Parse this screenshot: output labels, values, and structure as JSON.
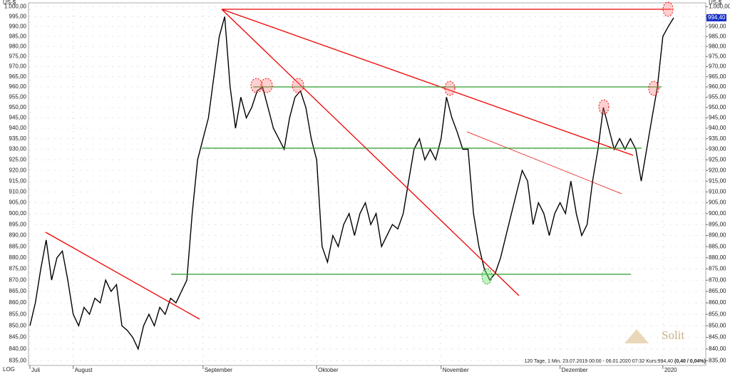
{
  "chart_data": {
    "type": "line",
    "log_scale": true,
    "grid": true,
    "color": "#000000",
    "axis_unit": "US-$",
    "scale_label": "LOG",
    "footer": "120 Tage, 1 Min. 23.07.2019 00:00 - 06.01.2020 07:32 Kurs:994,40",
    "footer_change": "(0,40 / 0,04%)",
    "logo": "Solit",
    "current_price": {
      "value": 994.4,
      "label": "994,40"
    },
    "ylim": [
      833,
      1002
    ],
    "yticks": [
      {
        "value": 835,
        "label": "835,00"
      },
      {
        "value": 840,
        "label": "840,00"
      },
      {
        "value": 845,
        "label": "845,00"
      },
      {
        "value": 850,
        "label": "850,00"
      },
      {
        "value": 855,
        "label": "855,00"
      },
      {
        "value": 860,
        "label": "860,00"
      },
      {
        "value": 865,
        "label": "865,00"
      },
      {
        "value": 870,
        "label": "870,00"
      },
      {
        "value": 875,
        "label": "875,00"
      },
      {
        "value": 880,
        "label": "880,00"
      },
      {
        "value": 885,
        "label": "885,00"
      },
      {
        "value": 890,
        "label": "890,00"
      },
      {
        "value": 895,
        "label": "895,00"
      },
      {
        "value": 900,
        "label": "900,00"
      },
      {
        "value": 905,
        "label": "905,00"
      },
      {
        "value": 910,
        "label": "910,00"
      },
      {
        "value": 915,
        "label": "915,00"
      },
      {
        "value": 920,
        "label": "920,00"
      },
      {
        "value": 925,
        "label": "925,00"
      },
      {
        "value": 930,
        "label": "930,00"
      },
      {
        "value": 935,
        "label": "935,00"
      },
      {
        "value": 940,
        "label": "940,00"
      },
      {
        "value": 945,
        "label": "945,00"
      },
      {
        "value": 950,
        "label": "950,00"
      },
      {
        "value": 955,
        "label": "955,00"
      },
      {
        "value": 960,
        "label": "960,00"
      },
      {
        "value": 965,
        "label": "965,00"
      },
      {
        "value": 970,
        "label": "970,00"
      },
      {
        "value": 975,
        "label": "975,00"
      },
      {
        "value": 980,
        "label": "980,00"
      },
      {
        "value": 985,
        "label": "985,00"
      },
      {
        "value": 990,
        "label": "990,00"
      },
      {
        "value": 995,
        "label": "995,00"
      },
      {
        "value": 1000,
        "label": "1.000,00"
      }
    ],
    "categories": [
      "Juli",
      null,
      null,
      null,
      null,
      null,
      null,
      null,
      "August",
      null,
      null,
      null,
      null,
      null,
      null,
      null,
      null,
      null,
      null,
      null,
      null,
      null,
      null,
      null,
      null,
      null,
      null,
      null,
      null,
      null,
      null,
      null,
      "September",
      null,
      null,
      null,
      null,
      null,
      null,
      null,
      null,
      null,
      null,
      null,
      null,
      null,
      null,
      null,
      null,
      null,
      null,
      null,
      null,
      "Oktober",
      null,
      null,
      null,
      null,
      null,
      null,
      null,
      null,
      null,
      null,
      null,
      null,
      null,
      null,
      null,
      null,
      null,
      null,
      null,
      null,
      null,
      null,
      "November",
      null,
      null,
      null,
      null,
      null,
      null,
      null,
      null,
      null,
      null,
      null,
      null,
      null,
      null,
      null,
      null,
      null,
      null,
      null,
      null,
      null,
      "Dezember",
      null,
      null,
      null,
      null,
      null,
      null,
      null,
      null,
      null,
      null,
      null,
      null,
      null,
      null,
      null,
      null,
      null,
      null,
      "2020",
      null,
      null
    ],
    "values": [
      850,
      860,
      875,
      888,
      870,
      880,
      883,
      870,
      855,
      850,
      858,
      855,
      862,
      860,
      870,
      865,
      868,
      850,
      848,
      845,
      840,
      850,
      855,
      850,
      858,
      855,
      862,
      860,
      865,
      870,
      900,
      925,
      935,
      945,
      965,
      985,
      995,
      960,
      940,
      955,
      945,
      950,
      958,
      960,
      950,
      940,
      935,
      930,
      945,
      955,
      958,
      950,
      935,
      925,
      885,
      878,
      890,
      885,
      895,
      900,
      890,
      900,
      905,
      895,
      900,
      885,
      890,
      895,
      893,
      900,
      915,
      930,
      935,
      925,
      930,
      925,
      935,
      955,
      945,
      938,
      930,
      930,
      900,
      885,
      875,
      870,
      873,
      880,
      890,
      900,
      910,
      920,
      915,
      895,
      905,
      900,
      890,
      900,
      905,
      900,
      915,
      900,
      890,
      895,
      915,
      930,
      950,
      940,
      930,
      935,
      930,
      935,
      930,
      915,
      930,
      945,
      960,
      985,
      990,
      994.4
    ]
  }
}
